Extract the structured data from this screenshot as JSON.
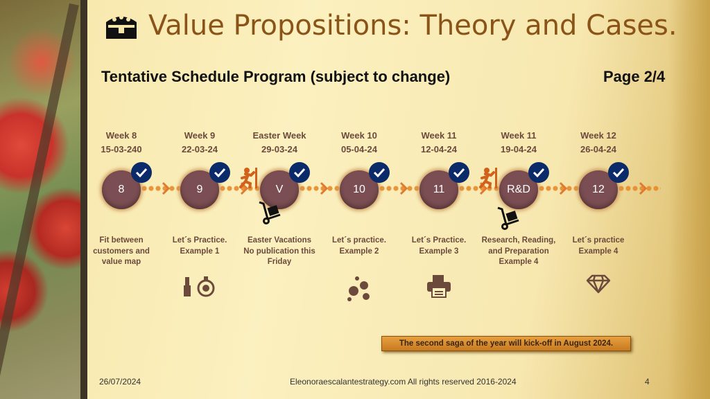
{
  "header": {
    "title": "Value Propositions: Theory and Cases.",
    "subtitle": "Tentative Schedule Program (subject to change)",
    "page": "Page 2/4",
    "title_icon": "treasure-chest-icon"
  },
  "colors": {
    "title": "#8a5418",
    "circle": "#7a4e52",
    "check": "#0b2a6a",
    "text": "#6b4a3c",
    "banner": "#d8902e"
  },
  "timeline": [
    {
      "week": "Week 8",
      "date": "15-03-240",
      "label": "8",
      "desc": "Fit between customers and value map",
      "icon": ""
    },
    {
      "week": "Week 9",
      "date": "22-03-24",
      "label": "9",
      "desc": "Let´s Practice. Example 1",
      "icon": "lipstick-perfume-icon"
    },
    {
      "week": "Easter Week",
      "date": "29-03-24",
      "label": "V",
      "desc": "Easter Vacations No publication this Friday",
      "icon": ""
    },
    {
      "week": "Week 10",
      "date": "05-04-24",
      "label": "10",
      "desc": "Let´s practice. Example 2",
      "icon": "bubbles-icon"
    },
    {
      "week": "Week 11",
      "date": "12-04-24",
      "label": "11",
      "desc": "Let´s Practice. Example 3",
      "icon": "printer-icon"
    },
    {
      "week": "Week 11",
      "date": "19-04-24",
      "label": "R&D",
      "desc": "Research, Reading, and Preparation Example 4",
      "icon": ""
    },
    {
      "week": "Week 12",
      "date": "26-04-24",
      "label": "12",
      "desc": "Let´s practice Example 4",
      "icon": "diamond-icon"
    }
  ],
  "banner": "The second saga of the year will kick-off in August 2024.",
  "footer": {
    "date": "26/07/2024",
    "center": "Eleonoraescalantestrategy.com  All rights reserved 2016-2024",
    "number": "4"
  }
}
